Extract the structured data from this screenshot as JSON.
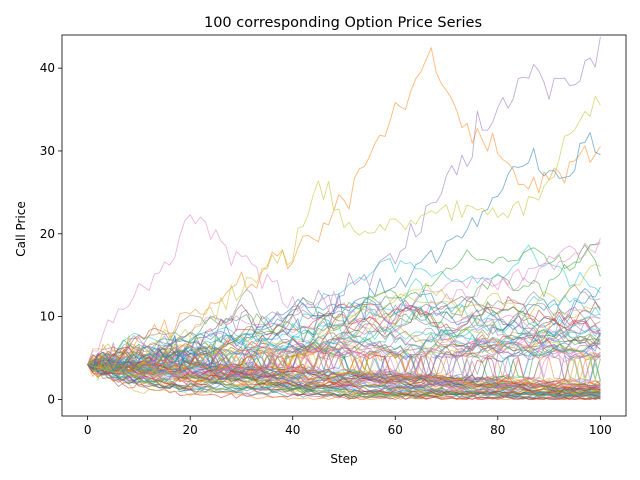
{
  "chart_data": {
    "type": "line",
    "title": "100 corresponding Option Price Series",
    "xlabel": "Step",
    "ylabel": "Call Price",
    "xlim": [
      -5,
      105
    ],
    "ylim": [
      -2,
      44
    ],
    "xticks": [
      0,
      20,
      40,
      60,
      80,
      100
    ],
    "yticks": [
      0,
      10,
      20,
      30,
      40
    ],
    "grid": false,
    "legend": "none",
    "series_count": 100,
    "steps": 101,
    "start_value": 4.2,
    "colors": [
      "#1f77b4",
      "#ff7f0e",
      "#2ca02c",
      "#d62728",
      "#9467bd",
      "#8c564b",
      "#e377c2",
      "#7f7f7f",
      "#bcbd22",
      "#17becf"
    ],
    "highlighted_series": [
      {
        "color": "#ff7f0e",
        "x": [
          0,
          5,
          10,
          15,
          20,
          25,
          30,
          35,
          40,
          45,
          50,
          55,
          60,
          63,
          65,
          67,
          70,
          73,
          75,
          78,
          80,
          85,
          90,
          95,
          100
        ],
        "values": [
          4.2,
          5.5,
          7,
          8.5,
          10,
          12,
          14,
          16,
          18,
          20,
          24,
          30,
          34,
          37,
          39,
          41,
          38,
          33,
          32,
          31,
          30,
          26,
          27,
          28,
          30
        ]
      },
      {
        "color": "#9467bd",
        "x": [
          0,
          10,
          20,
          30,
          40,
          50,
          60,
          65,
          70,
          75,
          80,
          85,
          88,
          90,
          92,
          95,
          98,
          100
        ],
        "values": [
          4.2,
          5,
          7,
          9,
          11,
          13,
          17,
          21,
          26,
          31,
          34,
          38,
          40,
          37,
          39,
          38,
          41,
          42
        ]
      },
      {
        "color": "#bcbd22",
        "x": [
          0,
          10,
          20,
          30,
          40,
          45,
          50,
          55,
          60,
          70,
          80,
          85,
          90,
          95,
          100
        ],
        "values": [
          4.2,
          6,
          9,
          13,
          18,
          25,
          22,
          20,
          21,
          23,
          22,
          24,
          26,
          33,
          36.5
        ]
      },
      {
        "color": "#1f77b4",
        "x": [
          0,
          10,
          20,
          30,
          40,
          50,
          60,
          70,
          80,
          85,
          90,
          95,
          98,
          100
        ],
        "values": [
          4.2,
          5,
          6,
          7,
          8,
          10,
          14,
          18,
          24,
          30,
          27,
          28,
          32.5,
          29
        ]
      },
      {
        "color": "#e377c2",
        "x": [
          0,
          5,
          10,
          15,
          20,
          25,
          30,
          35,
          40,
          50,
          60,
          70,
          80,
          90,
          100
        ],
        "values": [
          4.2,
          10,
          13,
          16,
          22,
          20,
          17,
          14,
          12,
          11,
          10,
          12,
          14,
          16,
          19
        ]
      }
    ]
  }
}
